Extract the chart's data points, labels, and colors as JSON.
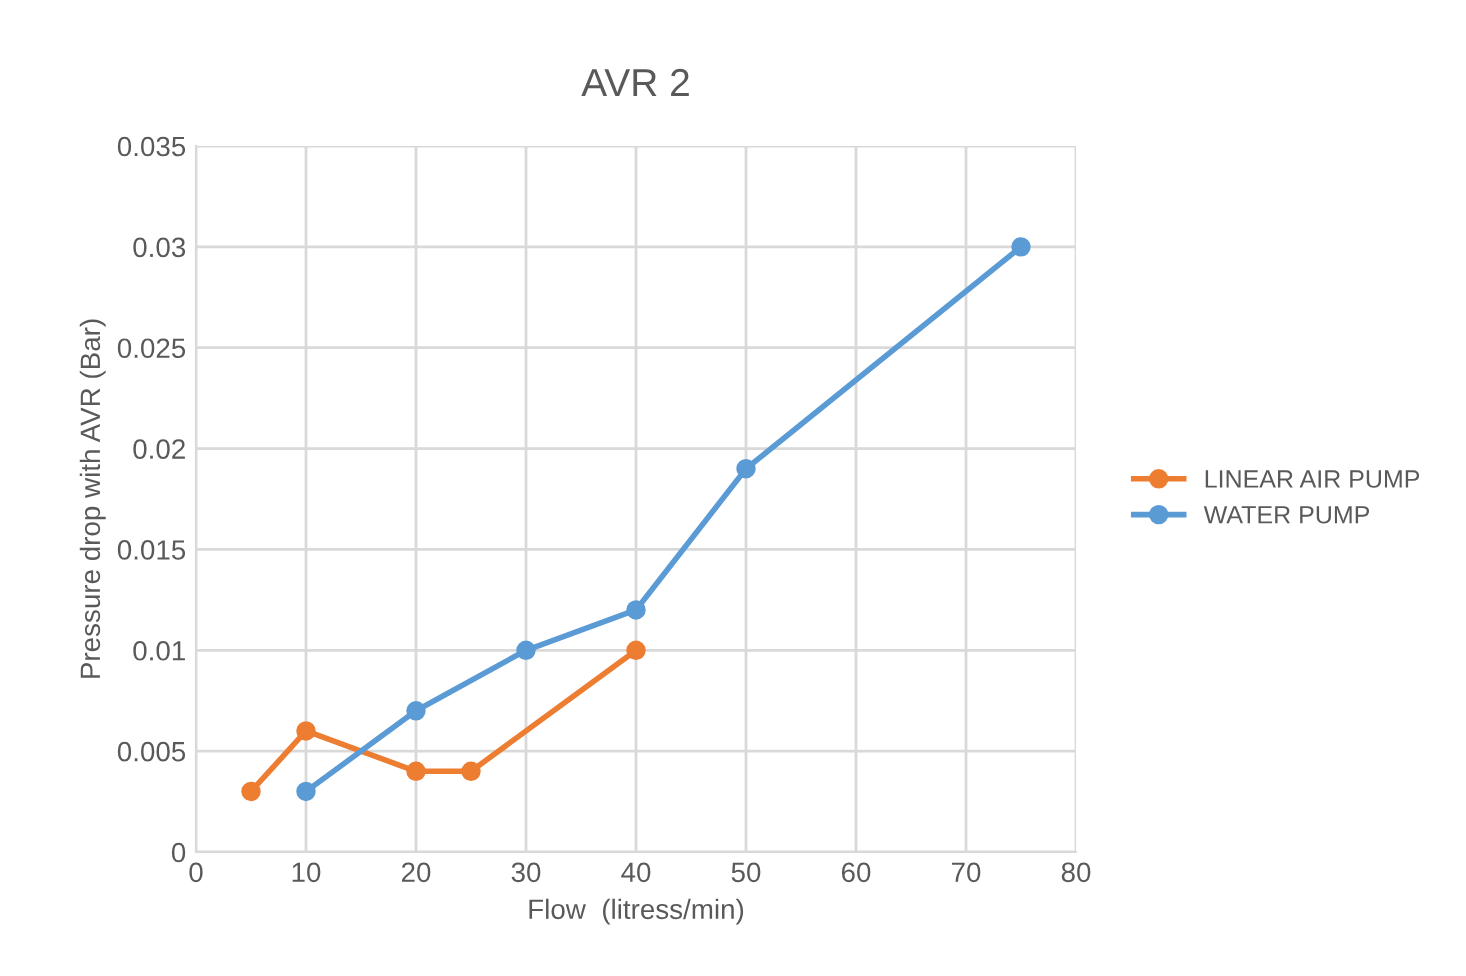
{
  "chart_data": {
    "type": "line",
    "title": "AVR 2",
    "xlabel": "Flow  (litress/min)",
    "ylabel": "Pressure drop with AVR (Bar)",
    "series": [
      {
        "name": "LINEAR AIR PUMP",
        "color": "#ed7d31",
        "x": [
          5,
          10,
          20,
          25,
          40
        ],
        "values": [
          0.003,
          0.006,
          0.004,
          0.004,
          0.01
        ]
      },
      {
        "name": "WATER PUMP",
        "color": "#5b9bd5",
        "x": [
          10,
          20,
          30,
          40,
          50,
          75
        ],
        "values": [
          0.003,
          0.007,
          0.01,
          0.012,
          0.019,
          0.03
        ]
      }
    ],
    "xlim": [
      0,
      80
    ],
    "xticks": [
      0,
      10,
      20,
      30,
      40,
      50,
      60,
      70,
      80
    ],
    "ylim": [
      0,
      0.035
    ],
    "yticks": [
      0,
      0.005,
      0.01,
      0.015,
      0.02,
      0.025,
      0.03,
      0.035
    ],
    "grid": true,
    "legend": "right",
    "marker": "circle",
    "line_style": "solid"
  }
}
